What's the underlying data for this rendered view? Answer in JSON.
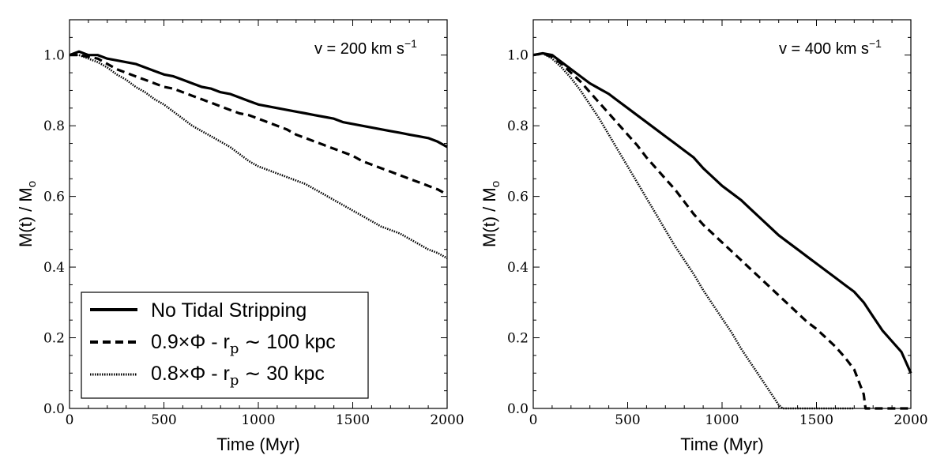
{
  "chart_data": [
    {
      "type": "line",
      "title": "",
      "annotation": "v = 200 km s",
      "annotation_sup": "−1",
      "xlabel": "Time (Myr)",
      "ylabel": "M(t) / M",
      "ylabel_sub": "o",
      "xlim": [
        0,
        2000
      ],
      "ylim": [
        0.0,
        1.1
      ],
      "xticks": [
        0,
        500,
        1000,
        1500,
        2000
      ],
      "yticks": [
        0.0,
        0.2,
        0.4,
        0.6,
        0.8,
        1.0
      ],
      "legend_position": "lower-left",
      "series": [
        {
          "name": "No Tidal Stripping",
          "style": "solid",
          "x": [
            0,
            50,
            100,
            150,
            200,
            250,
            300,
            350,
            400,
            450,
            500,
            550,
            600,
            650,
            700,
            750,
            800,
            850,
            900,
            950,
            1000,
            1050,
            1100,
            1150,
            1200,
            1250,
            1300,
            1350,
            1400,
            1450,
            1500,
            1550,
            1600,
            1650,
            1700,
            1750,
            1800,
            1850,
            1900,
            1950,
            2000
          ],
          "y": [
            1.0,
            1.01,
            1.0,
            1.0,
            0.99,
            0.985,
            0.98,
            0.975,
            0.965,
            0.955,
            0.945,
            0.94,
            0.93,
            0.92,
            0.91,
            0.905,
            0.895,
            0.89,
            0.88,
            0.87,
            0.86,
            0.855,
            0.85,
            0.845,
            0.84,
            0.835,
            0.83,
            0.825,
            0.82,
            0.81,
            0.805,
            0.8,
            0.795,
            0.79,
            0.785,
            0.78,
            0.775,
            0.77,
            0.765,
            0.755,
            0.74
          ]
        },
        {
          "name": "0.9×Φ - r ~ 100 kpc",
          "style": "dashed",
          "x": [
            0,
            50,
            100,
            150,
            200,
            250,
            300,
            350,
            400,
            450,
            500,
            550,
            600,
            650,
            700,
            750,
            800,
            850,
            900,
            950,
            1000,
            1050,
            1100,
            1150,
            1200,
            1250,
            1300,
            1350,
            1400,
            1450,
            1500,
            1550,
            1600,
            1650,
            1700,
            1750,
            1800,
            1850,
            1900,
            1950,
            2000
          ],
          "y": [
            1.0,
            1.0,
            0.995,
            0.99,
            0.975,
            0.96,
            0.95,
            0.94,
            0.93,
            0.92,
            0.91,
            0.905,
            0.895,
            0.885,
            0.875,
            0.865,
            0.855,
            0.845,
            0.835,
            0.83,
            0.82,
            0.81,
            0.8,
            0.79,
            0.775,
            0.765,
            0.755,
            0.745,
            0.735,
            0.725,
            0.715,
            0.7,
            0.69,
            0.68,
            0.67,
            0.66,
            0.65,
            0.64,
            0.63,
            0.62,
            0.605
          ]
        },
        {
          "name": "0.8×Φ - r ~ 30 kpc",
          "style": "dotted",
          "x": [
            0,
            50,
            100,
            150,
            200,
            250,
            300,
            350,
            400,
            450,
            500,
            550,
            600,
            650,
            700,
            750,
            800,
            850,
            900,
            950,
            1000,
            1050,
            1100,
            1150,
            1200,
            1250,
            1300,
            1350,
            1400,
            1450,
            1500,
            1550,
            1600,
            1650,
            1700,
            1750,
            1800,
            1850,
            1900,
            1950,
            2000
          ],
          "y": [
            1.0,
            1.0,
            0.99,
            0.98,
            0.965,
            0.945,
            0.93,
            0.91,
            0.895,
            0.875,
            0.86,
            0.84,
            0.82,
            0.8,
            0.785,
            0.77,
            0.755,
            0.74,
            0.72,
            0.7,
            0.685,
            0.675,
            0.665,
            0.655,
            0.645,
            0.635,
            0.62,
            0.605,
            0.59,
            0.575,
            0.56,
            0.545,
            0.53,
            0.515,
            0.505,
            0.495,
            0.48,
            0.465,
            0.45,
            0.44,
            0.425
          ]
        }
      ],
      "legend": [
        {
          "label": "No Tidal Stripping",
          "style": "solid"
        },
        {
          "label_main": "0.9×Φ - r",
          "label_sub": "p",
          "label_tail": " ∼ 100 kpc",
          "style": "dashed"
        },
        {
          "label_main": "0.8×Φ - r",
          "label_sub": "p",
          "label_tail": " ∼ 30 kpc",
          "style": "dotted"
        }
      ]
    },
    {
      "type": "line",
      "title": "",
      "annotation": "v = 400 km s",
      "annotation_sup": "−1",
      "xlabel": "Time (Myr)",
      "ylabel": "M(t) / M",
      "ylabel_sub": "o",
      "xlim": [
        0,
        2000
      ],
      "ylim": [
        0.0,
        1.1
      ],
      "xticks": [
        0,
        500,
        1000,
        1500,
        2000
      ],
      "yticks": [
        0.0,
        0.2,
        0.4,
        0.6,
        0.8,
        1.0
      ],
      "series": [
        {
          "name": "No Tidal Stripping",
          "style": "solid",
          "x": [
            0,
            50,
            100,
            150,
            200,
            250,
            300,
            350,
            400,
            450,
            500,
            550,
            600,
            650,
            700,
            750,
            800,
            850,
            900,
            950,
            1000,
            1050,
            1100,
            1150,
            1200,
            1250,
            1300,
            1350,
            1400,
            1450,
            1500,
            1550,
            1600,
            1650,
            1700,
            1750,
            1800,
            1850,
            1900,
            1950,
            2000
          ],
          "y": [
            1.0,
            1.005,
            1.0,
            0.98,
            0.96,
            0.94,
            0.92,
            0.905,
            0.89,
            0.87,
            0.85,
            0.83,
            0.81,
            0.79,
            0.77,
            0.75,
            0.73,
            0.71,
            0.68,
            0.655,
            0.63,
            0.61,
            0.59,
            0.565,
            0.54,
            0.515,
            0.49,
            0.47,
            0.45,
            0.43,
            0.41,
            0.39,
            0.37,
            0.35,
            0.33,
            0.3,
            0.26,
            0.22,
            0.19,
            0.16,
            0.1
          ]
        },
        {
          "name": "0.9×Φ - r ~ 100 kpc",
          "style": "dashed",
          "x": [
            0,
            50,
            100,
            150,
            200,
            250,
            300,
            350,
            400,
            450,
            500,
            550,
            600,
            650,
            700,
            750,
            800,
            850,
            900,
            950,
            1000,
            1050,
            1100,
            1150,
            1200,
            1250,
            1300,
            1350,
            1400,
            1450,
            1500,
            1550,
            1600,
            1650,
            1700,
            1750,
            1760,
            1800,
            1850,
            1900,
            1950,
            2000
          ],
          "y": [
            1.0,
            1.005,
            0.995,
            0.975,
            0.95,
            0.925,
            0.895,
            0.865,
            0.835,
            0.805,
            0.775,
            0.745,
            0.71,
            0.68,
            0.65,
            0.62,
            0.585,
            0.55,
            0.52,
            0.495,
            0.47,
            0.445,
            0.42,
            0.395,
            0.37,
            0.345,
            0.32,
            0.295,
            0.27,
            0.245,
            0.225,
            0.2,
            0.175,
            0.145,
            0.11,
            0.04,
            0.0,
            0.0,
            0.0,
            0.0,
            0.0,
            0.0
          ]
        },
        {
          "name": "0.8×Φ - r ~ 30 kpc",
          "style": "dotted",
          "x": [
            0,
            50,
            100,
            150,
            200,
            250,
            300,
            350,
            400,
            450,
            500,
            550,
            600,
            650,
            700,
            750,
            800,
            850,
            900,
            950,
            1000,
            1050,
            1100,
            1150,
            1200,
            1250,
            1300,
            1320,
            1330,
            1400,
            1500,
            1600,
            1700
          ],
          "y": [
            1.0,
            1.005,
            0.99,
            0.965,
            0.935,
            0.9,
            0.86,
            0.82,
            0.775,
            0.73,
            0.685,
            0.64,
            0.595,
            0.55,
            0.505,
            0.46,
            0.42,
            0.38,
            0.335,
            0.295,
            0.255,
            0.215,
            0.17,
            0.13,
            0.09,
            0.05,
            0.01,
            0.0,
            0.0,
            0.0,
            0.0,
            0.0,
            0.0
          ]
        }
      ]
    }
  ]
}
